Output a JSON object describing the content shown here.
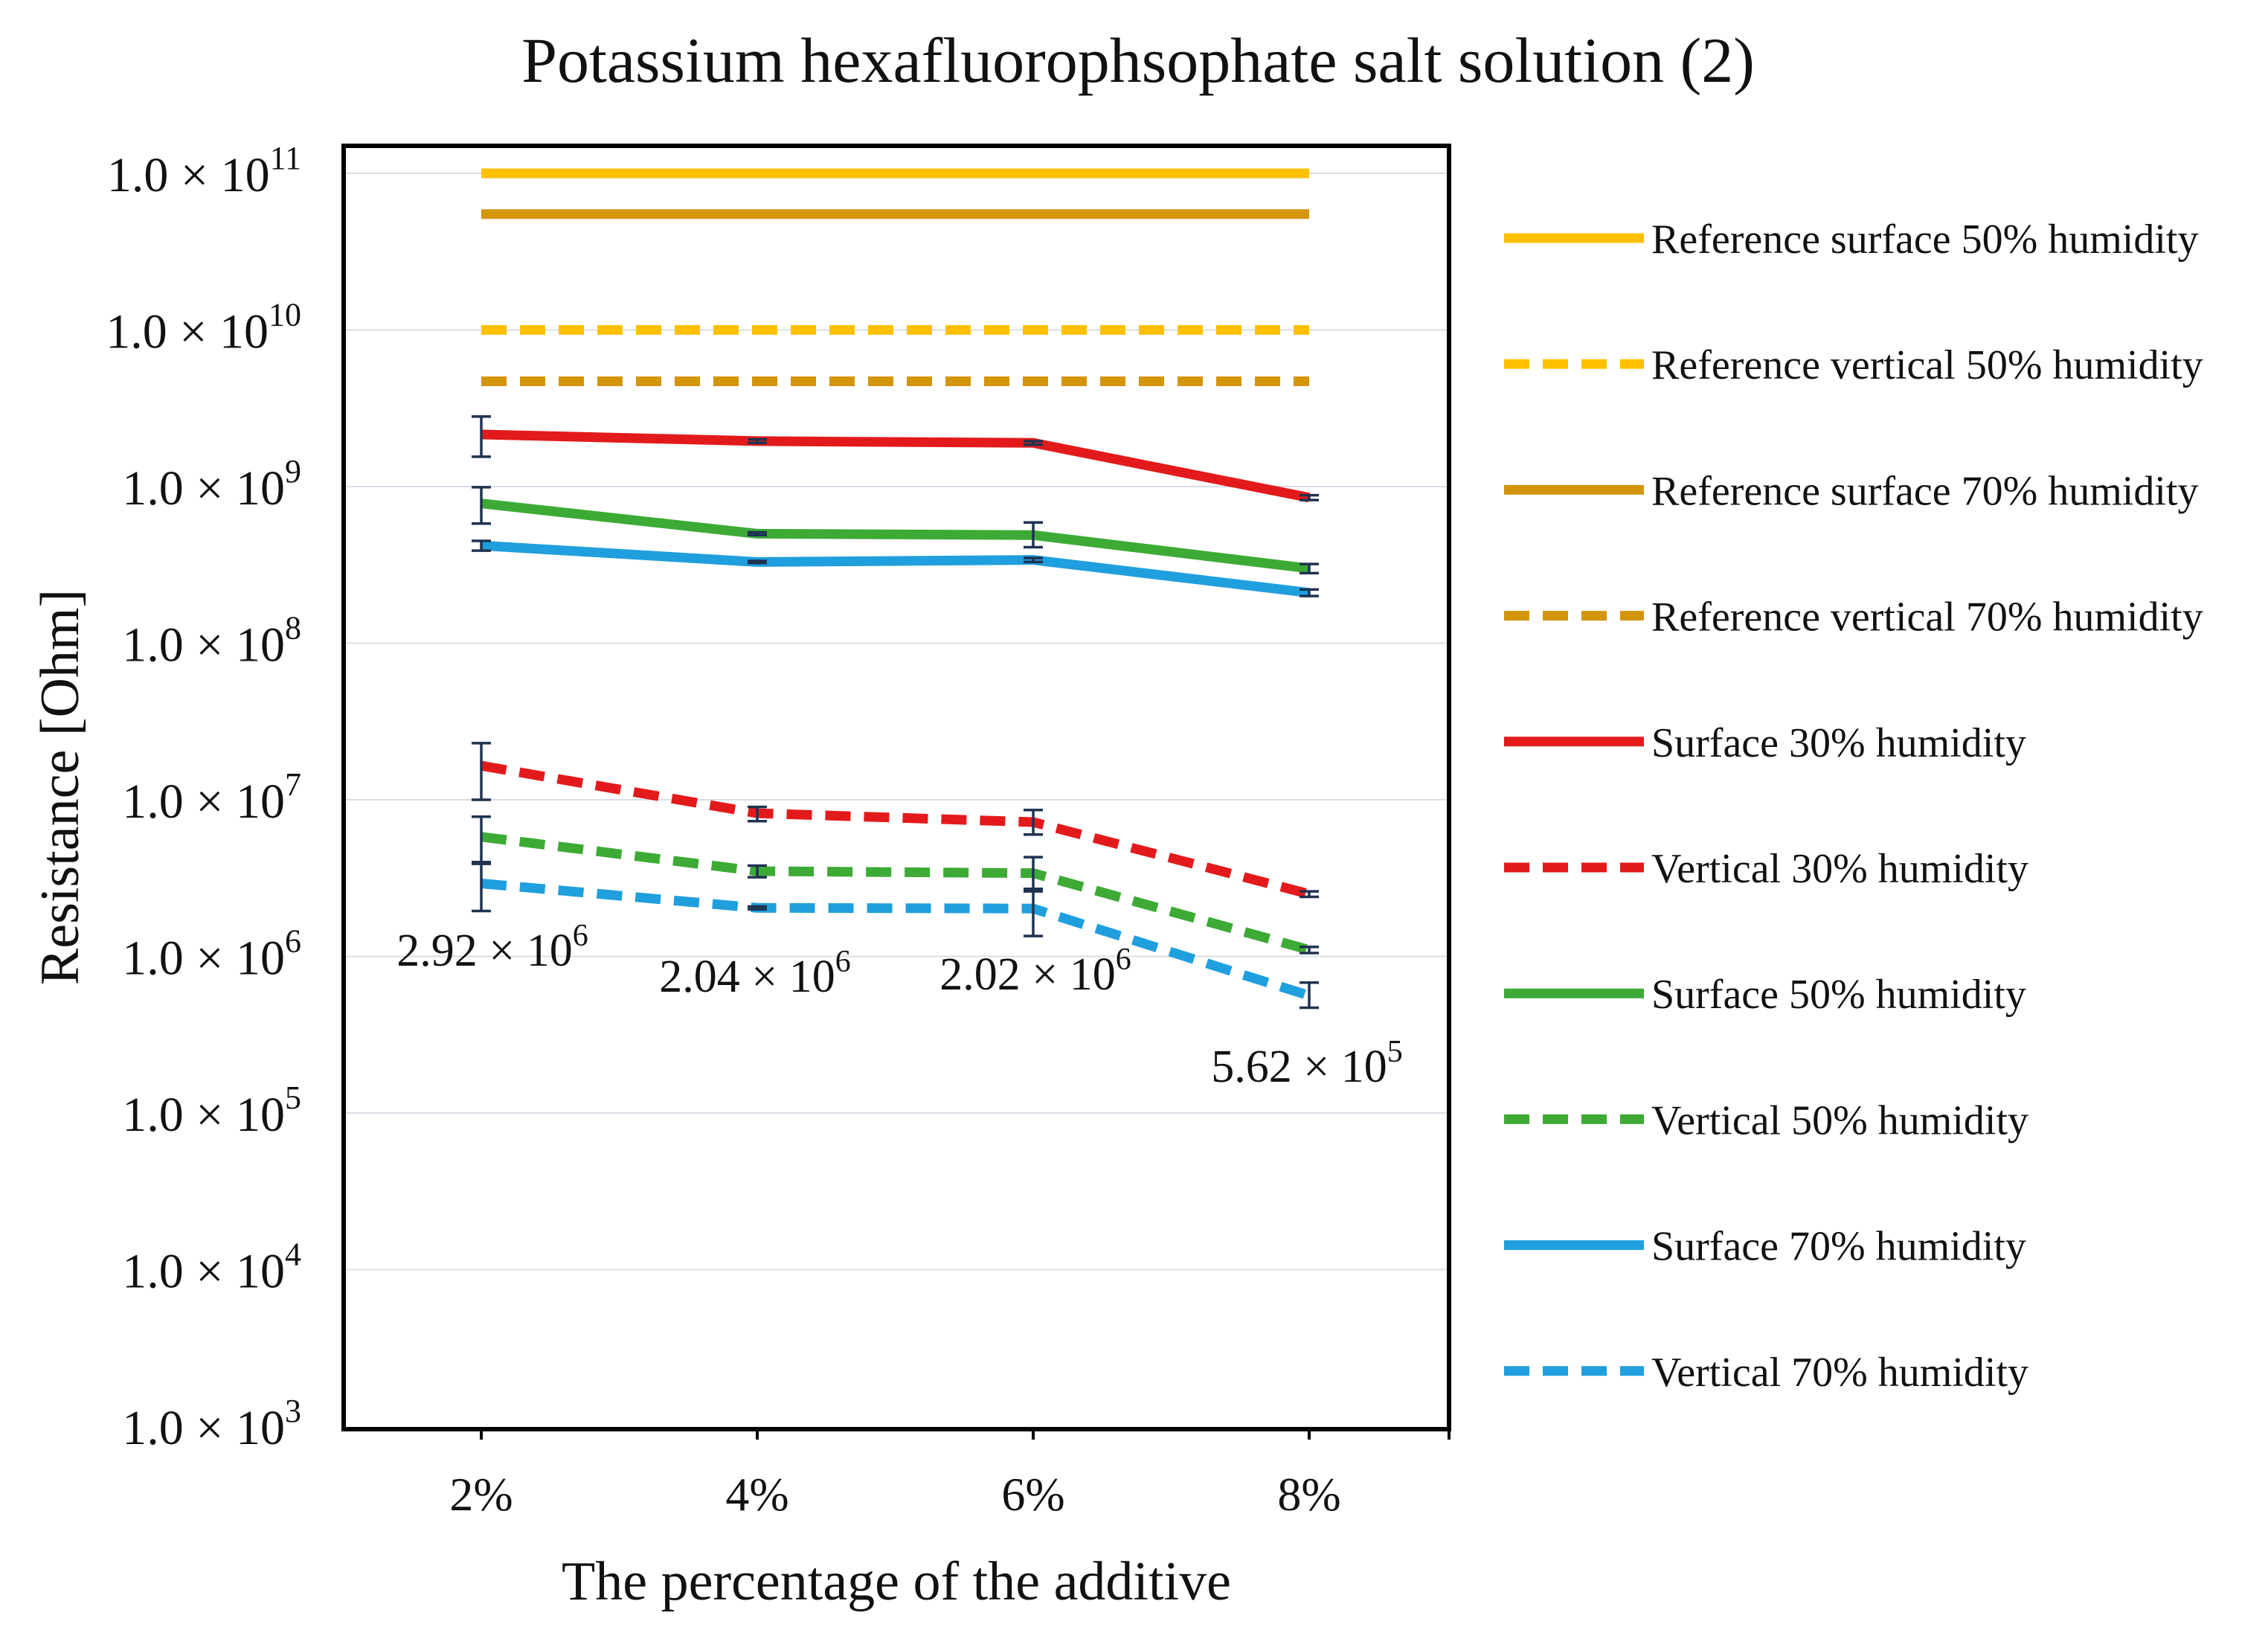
{
  "chart_data": {
    "type": "line",
    "title": "Potassium hexafluorophsophate salt solution (2)",
    "xlabel": "The percentage of the additive",
    "ylabel": "Resistance [Ohm]",
    "y_scale": "log",
    "ylim": [
      1000,
      200000000000
    ],
    "grid": true,
    "legend_position": "right",
    "categories": [
      "2%",
      "4%",
      "6%",
      "8%"
    ],
    "y_ticks": [
      {
        "value": 1000,
        "mantissa": "1.0 × 10",
        "exp": "3"
      },
      {
        "value": 10000,
        "mantissa": "1.0 × 10",
        "exp": "4"
      },
      {
        "value": 100000,
        "mantissa": "1.0 × 10",
        "exp": "5"
      },
      {
        "value": 1000000,
        "mantissa": "1.0 × 10",
        "exp": "6"
      },
      {
        "value": 10000000,
        "mantissa": "1.0 × 10",
        "exp": "7"
      },
      {
        "value": 100000000,
        "mantissa": "1.0 × 10",
        "exp": "8"
      },
      {
        "value": 1000000000,
        "mantissa": "1.0 × 10",
        "exp": "9"
      },
      {
        "value": 10000000000,
        "mantissa": "1.0 × 10",
        "exp": "10"
      },
      {
        "value": 100000000000,
        "mantissa": "1.0 × 10",
        "exp": "11"
      }
    ],
    "series": [
      {
        "name": "Reference surface 50% humidity",
        "color": "#FFC000",
        "dashed": false,
        "values": [
          100000000000,
          100000000000,
          100000000000,
          100000000000
        ],
        "errors": null
      },
      {
        "name": "Reference vertical 50% humidity",
        "color": "#FFC000",
        "dashed": true,
        "values": [
          10000000000,
          10000000000,
          10000000000,
          10000000000
        ],
        "errors": null
      },
      {
        "name": "Reference surface 70% humidity",
        "color": "#D4950A",
        "dashed": false,
        "values": [
          55000000000,
          55000000000,
          55000000000,
          55000000000
        ],
        "errors": null
      },
      {
        "name": "Reference vertical 70% humidity",
        "color": "#D4950A",
        "dashed": true,
        "values": [
          4700000000,
          4700000000,
          4700000000,
          4700000000
        ],
        "errors": null
      },
      {
        "name": "Surface 30% humidity",
        "color": "#E31A1C",
        "dashed": false,
        "values": [
          2150000000,
          1950000000,
          1900000000,
          850000000
        ],
        "errors": [
          [
            1550000000,
            2800000000
          ],
          [
            1900000000,
            2000000000
          ],
          [
            1850000000,
            1950000000
          ],
          [
            820000000,
            880000000
          ]
        ]
      },
      {
        "name": "Vertical 30% humidity",
        "color": "#E31A1C",
        "dashed": true,
        "values": [
          16500000,
          8200000,
          7200000,
          2500000
        ],
        "errors": [
          [
            10000000,
            23000000
          ],
          [
            7300000,
            9000000
          ],
          [
            6000000,
            8600000
          ],
          [
            2400000,
            2600000
          ]
        ]
      },
      {
        "name": "Surface 50% humidity",
        "color": "#3DAA35",
        "dashed": false,
        "values": [
          780000000,
          500000000,
          490000000,
          300000000
        ],
        "errors": [
          [
            580000000,
            990000000
          ],
          [
            490000000,
            510000000
          ],
          [
            410000000,
            590000000
          ],
          [
            280000000,
            320000000
          ]
        ]
      },
      {
        "name": "Vertical 50% humidity",
        "color": "#3DAA35",
        "dashed": true,
        "values": [
          5800000,
          3500000,
          3400000,
          1100000
        ],
        "errors": [
          [
            4000000,
            7800000
          ],
          [
            3200000,
            3800000
          ],
          [
            2700000,
            4300000
          ],
          [
            1050000,
            1150000
          ]
        ]
      },
      {
        "name": "Surface 70% humidity",
        "color": "#1F9FDE",
        "dashed": false,
        "values": [
          420000000,
          330000000,
          340000000,
          210000000
        ],
        "errors": [
          [
            390000000,
            450000000
          ],
          [
            325000000,
            335000000
          ],
          [
            330000000,
            350000000
          ],
          [
            200000000,
            220000000
          ]
        ]
      },
      {
        "name": "Vertical 70% humidity",
        "color": "#1F9FDE",
        "dashed": true,
        "values": [
          2920000,
          2040000,
          2020000,
          562000
        ],
        "errors": [
          [
            1950000,
            3900000
          ],
          [
            2000000,
            2080000
          ],
          [
            1350000,
            2600000
          ],
          [
            470000,
            680000
          ]
        ]
      }
    ],
    "annotations": [
      {
        "mantissa": "2.92 × 10",
        "exp": "6",
        "category": "2%",
        "value": 2920000
      },
      {
        "mantissa": "2.04 × 10",
        "exp": "6",
        "category": "4%",
        "value": 2040000
      },
      {
        "mantissa": "2.02 × 10",
        "exp": "6",
        "category": "6%",
        "value": 2020000
      },
      {
        "mantissa": "5.62 × 10",
        "exp": "5",
        "category": "8%",
        "value": 562000
      }
    ]
  }
}
